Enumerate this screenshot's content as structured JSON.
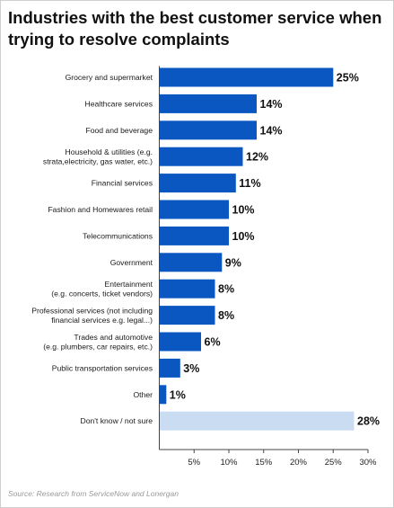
{
  "chart_data": {
    "type": "bar",
    "orientation": "horizontal",
    "title": "Industries with the best customer service when trying to resolve complaints",
    "categories": [
      "Grocery and supermarket",
      "Healthcare services",
      "Food and beverage",
      "Household & utilities (e.g.\nstrata,electricity, gas water, etc.)",
      "Financial services",
      "Fashion and Homewares retail",
      "Telecommunications",
      "Government",
      "Entertainment\n(e.g. concerts, ticket vendors)",
      "Professional services (not including\nfinancial services e.g. legal...)",
      "Trades and automotive\n(e.g. plumbers, car repairs, etc.)",
      "Public transportation services",
      "Other",
      "Don't know / not sure"
    ],
    "values": [
      25,
      14,
      14,
      12,
      11,
      10,
      10,
      9,
      8,
      8,
      6,
      3,
      1,
      28
    ],
    "data_labels": [
      "25%",
      "14%",
      "14%",
      "12%",
      "11%",
      "10%",
      "10%",
      "9%",
      "8%",
      "8%",
      "6%",
      "3%",
      "1%",
      "28%"
    ],
    "bar_colors": [
      "#0a57c2",
      "#0a57c2",
      "#0a57c2",
      "#0a57c2",
      "#0a57c2",
      "#0a57c2",
      "#0a57c2",
      "#0a57c2",
      "#0a57c2",
      "#0a57c2",
      "#0a57c2",
      "#0a57c2",
      "#0a57c2",
      "#c9dcf1"
    ],
    "xlim": [
      0,
      30
    ],
    "xticks": [
      5,
      10,
      15,
      20,
      25,
      30
    ],
    "xtick_labels": [
      "5%",
      "10%",
      "15%",
      "20%",
      "25%",
      "30%"
    ],
    "grid": false,
    "legend": "none",
    "source": "Source: Research from ServiceNow and Lonergan"
  }
}
